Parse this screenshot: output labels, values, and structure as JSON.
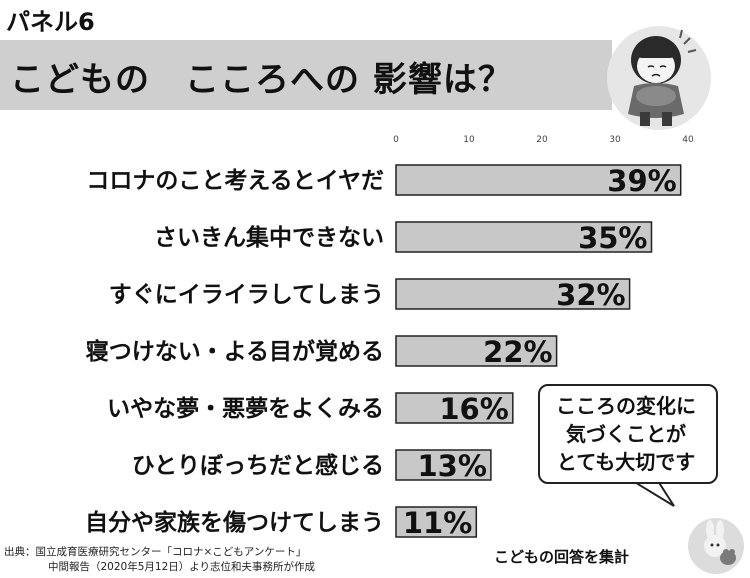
{
  "panel_label": "パネル6",
  "title": "こどもの　こころへの 影響は？",
  "chart_data": {
    "type": "bar",
    "orientation": "horizontal",
    "categories": [
      "コロナのこと考えるとイヤだ",
      "さいきん集中できない",
      "すぐにイライラしてしまう",
      "寝つけない・よる目が覚める",
      "いやな夢・悪夢をよくみる",
      "ひとりぼっちだと感じる",
      "自分や家族を傷つけてしまう"
    ],
    "values": [
      39,
      35,
      32,
      22,
      16,
      13,
      11
    ],
    "value_labels": [
      "39%",
      "35%",
      "32%",
      "22%",
      "16%",
      "13%",
      "11%"
    ],
    "xticks": [
      "0",
      "10",
      "20",
      "30",
      "40"
    ],
    "xlim": [
      0,
      40
    ],
    "grid": false,
    "bar_color": "#c8c8c8",
    "bar_edge_color": "#222222"
  },
  "callout": {
    "lines": [
      "こころの変化に",
      "気づくことが",
      "とても大切です"
    ]
  },
  "note": "こどもの回答を集計",
  "source": {
    "line1": "出典：国立成育医療研究センター「コロナ×こどもアンケート」",
    "line2": "中間報告（2020年5月12日）より志位和夫事務所が作成"
  },
  "illustration": {
    "icon": "sad-child-hugging-knees-icon"
  },
  "stamp": {
    "icon": "rabbit-bear-stamp-icon"
  }
}
